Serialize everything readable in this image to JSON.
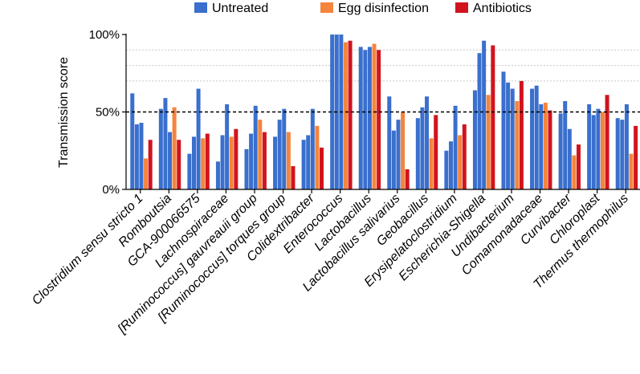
{
  "chart_data": {
    "type": "bar",
    "title": "",
    "ylabel": "Transmission score",
    "xlabel": "",
    "ylim": [
      0,
      100
    ],
    "yticks": [
      0,
      50,
      100
    ],
    "ytick_labels": [
      "0%",
      "50%",
      "100%"
    ],
    "reference_line": 50,
    "gridlines": [
      70,
      80,
      90
    ],
    "legend_position": "top",
    "colors": {
      "Untreated": "#3a6fcd",
      "Egg disinfection": "#f5843c",
      "Antibiotics": "#d0141e"
    },
    "categories": [
      "Clostridium sensu stricto 1",
      "Romboutsia",
      "GCA-900066575",
      "Lachnospiraceae",
      "[Ruminococcus] gauvreauii group",
      "[Ruminococcus] torques group",
      "Colidextribacter",
      "Enterococcus",
      "Lactobacillus",
      "Lactobacillus salivarius",
      "Geobacillus",
      "Erysipelatoclostridium",
      "Escherichia-Shigella",
      "Undibacterium",
      "Comamonadaceae",
      "Curvibacter",
      "Chloroplast",
      "Thermus thermophilus"
    ],
    "groups": [
      {
        "series": [
          {
            "name": "Untreated",
            "values": [
              62,
              42,
              43
            ]
          },
          {
            "name": "Egg disinfection",
            "values": [
              20
            ]
          },
          {
            "name": "Antibiotics",
            "values": [
              32
            ]
          }
        ]
      },
      {
        "series": [
          {
            "name": "Untreated",
            "values": [
              52,
              59,
              37
            ]
          },
          {
            "name": "Egg disinfection",
            "values": [
              53
            ]
          },
          {
            "name": "Antibiotics",
            "values": [
              32
            ]
          }
        ]
      },
      {
        "series": [
          {
            "name": "Untreated",
            "values": [
              23,
              34,
              65
            ]
          },
          {
            "name": "Egg disinfection",
            "values": [
              33
            ]
          },
          {
            "name": "Antibiotics",
            "values": [
              36
            ]
          }
        ]
      },
      {
        "series": [
          {
            "name": "Untreated",
            "values": [
              18,
              35,
              55
            ]
          },
          {
            "name": "Egg disinfection",
            "values": [
              34
            ]
          },
          {
            "name": "Antibiotics",
            "values": [
              39
            ]
          }
        ]
      },
      {
        "series": [
          {
            "name": "Untreated",
            "values": [
              26,
              36,
              54
            ]
          },
          {
            "name": "Egg disinfection",
            "values": [
              45
            ]
          },
          {
            "name": "Antibiotics",
            "values": [
              37
            ]
          }
        ]
      },
      {
        "series": [
          {
            "name": "Untreated",
            "values": [
              34,
              45,
              52
            ]
          },
          {
            "name": "Egg disinfection",
            "values": [
              37
            ]
          },
          {
            "name": "Antibiotics",
            "values": [
              15
            ]
          }
        ]
      },
      {
        "series": [
          {
            "name": "Untreated",
            "values": [
              32,
              35,
              52
            ]
          },
          {
            "name": "Egg disinfection",
            "values": [
              41
            ]
          },
          {
            "name": "Antibiotics",
            "values": [
              27
            ]
          }
        ]
      },
      {
        "series": [
          {
            "name": "Untreated",
            "values": [
              100,
              100,
              100
            ]
          },
          {
            "name": "Egg disinfection",
            "values": [
              95
            ]
          },
          {
            "name": "Antibiotics",
            "values": [
              96
            ]
          }
        ]
      },
      {
        "series": [
          {
            "name": "Untreated",
            "values": [
              92,
              90,
              92
            ]
          },
          {
            "name": "Egg disinfection",
            "values": [
              94
            ]
          },
          {
            "name": "Antibiotics",
            "values": [
              90
            ]
          }
        ]
      },
      {
        "series": [
          {
            "name": "Untreated",
            "values": [
              60,
              38,
              45
            ]
          },
          {
            "name": "Egg disinfection",
            "values": [
              50
            ]
          },
          {
            "name": "Antibiotics",
            "values": [
              13
            ]
          }
        ]
      },
      {
        "series": [
          {
            "name": "Untreated",
            "values": [
              46,
              53,
              60
            ]
          },
          {
            "name": "Egg disinfection",
            "values": [
              33
            ]
          },
          {
            "name": "Antibiotics",
            "values": [
              48
            ]
          }
        ]
      },
      {
        "series": [
          {
            "name": "Untreated",
            "values": [
              25,
              31,
              54
            ]
          },
          {
            "name": "Egg disinfection",
            "values": [
              35
            ]
          },
          {
            "name": "Antibiotics",
            "values": [
              42
            ]
          }
        ]
      },
      {
        "series": [
          {
            "name": "Untreated",
            "values": [
              64,
              88,
              96
            ]
          },
          {
            "name": "Egg disinfection",
            "values": [
              61
            ]
          },
          {
            "name": "Antibiotics",
            "values": [
              93
            ]
          }
        ]
      },
      {
        "series": [
          {
            "name": "Untreated",
            "values": [
              76,
              69,
              65
            ]
          },
          {
            "name": "Egg disinfection",
            "values": [
              57
            ]
          },
          {
            "name": "Antibiotics",
            "values": [
              70
            ]
          }
        ]
      },
      {
        "series": [
          {
            "name": "Untreated",
            "values": [
              65,
              67,
              55
            ]
          },
          {
            "name": "Egg disinfection",
            "values": [
              56
            ]
          },
          {
            "name": "Antibiotics",
            "values": [
              51
            ]
          }
        ]
      },
      {
        "series": [
          {
            "name": "Untreated",
            "values": [
              49,
              57,
              39
            ]
          },
          {
            "name": "Egg disinfection",
            "values": [
              22
            ]
          },
          {
            "name": "Antibiotics",
            "values": [
              29
            ]
          }
        ]
      },
      {
        "series": [
          {
            "name": "Untreated",
            "values": [
              55,
              48,
              52
            ]
          },
          {
            "name": "Egg disinfection",
            "values": [
              50
            ]
          },
          {
            "name": "Antibiotics",
            "values": [
              61
            ]
          }
        ]
      },
      {
        "series": [
          {
            "name": "Untreated",
            "values": [
              46,
              45,
              55
            ]
          },
          {
            "name": "Egg disinfection",
            "values": [
              23
            ]
          },
          {
            "name": "Antibiotics",
            "values": [
              41
            ]
          }
        ]
      }
    ]
  }
}
